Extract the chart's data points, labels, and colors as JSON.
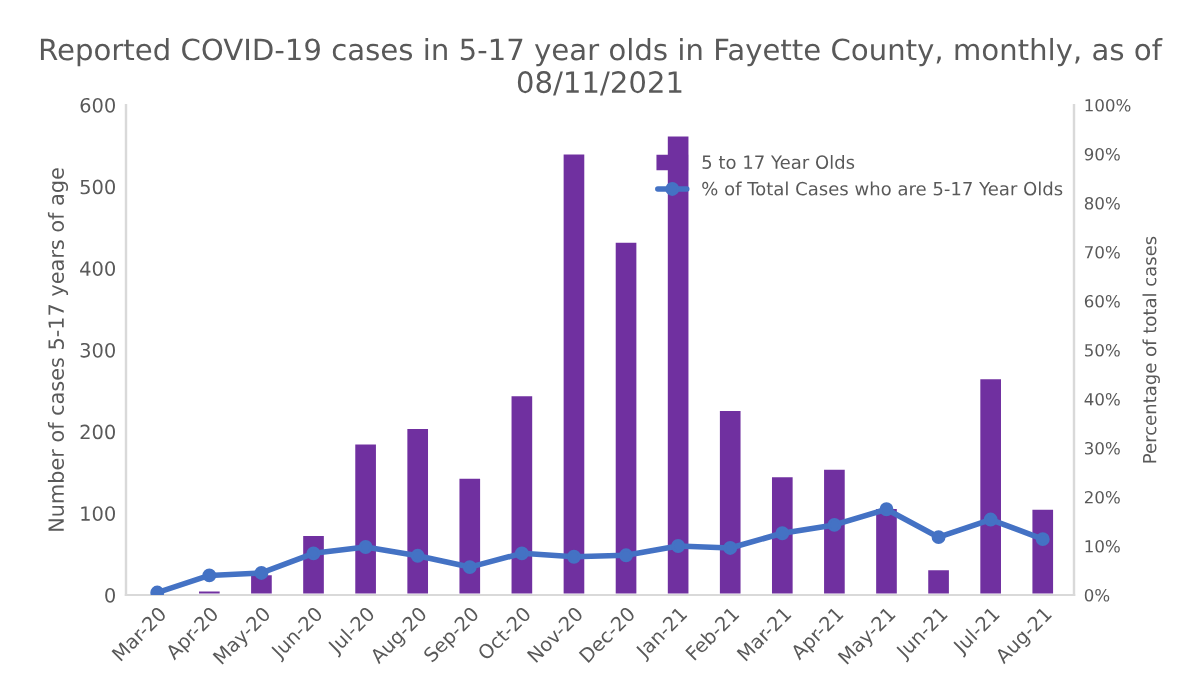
{
  "chart_data": {
    "type": "bar",
    "title": "Reported COVID-19 cases in 5-17 year olds in Fayette County, monthly, as of 08/11/2021",
    "categories": [
      "Mar-20",
      "Apr-20",
      "May-20",
      "Jun-20",
      "Jul-20",
      "Aug-20",
      "Sep-20",
      "Oct-20",
      "Nov-20",
      "Dec-20",
      "Jan-21",
      "Feb-21",
      "Mar-21",
      "Apr-21",
      "May-21",
      "Jun-21",
      "Jul-21",
      "Aug-21"
    ],
    "series": [
      {
        "name": "5 to 17 Year Olds",
        "color": "#7030a0",
        "values": [
          2,
          6,
          26,
          74,
          186,
          205,
          144,
          245,
          541,
          433,
          563,
          227,
          146,
          155,
          107,
          32,
          266,
          106
        ]
      },
      {
        "name": "% of Total Cases who are 5-17 Year Olds",
        "type": "line",
        "axis": "y2",
        "color": "#4472c4",
        "marker": "circle",
        "line_style": "solid",
        "values": [
          0.5,
          4,
          4.5,
          8.5,
          9.8,
          8,
          5.7,
          8.5,
          7.8,
          8.1,
          10,
          9.6,
          12.6,
          14.3,
          17.5,
          11.8,
          15.4,
          11.4
        ]
      }
    ],
    "ylabel": "Number of cases 5-17 years of age",
    "y2label": "Percentage of total cases",
    "ylim": [
      0,
      600
    ],
    "yticks": [
      0,
      100,
      200,
      300,
      400,
      500,
      600
    ],
    "y2lim": [
      0,
      100
    ],
    "y2ticks": [
      {
        "value": 0,
        "label": "0%"
      },
      {
        "value": 10,
        "label": "10%"
      },
      {
        "value": 20,
        "label": "20%"
      },
      {
        "value": 30,
        "label": "30%"
      },
      {
        "value": 40,
        "label": "40%"
      },
      {
        "value": 50,
        "label": "50%"
      },
      {
        "value": 60,
        "label": "60%"
      },
      {
        "value": 70,
        "label": "70%"
      },
      {
        "value": 80,
        "label": "80%"
      },
      {
        "value": 90,
        "label": "90%"
      },
      {
        "value": 100,
        "label": "100%"
      }
    ],
    "grid": false,
    "legend": "top right"
  }
}
